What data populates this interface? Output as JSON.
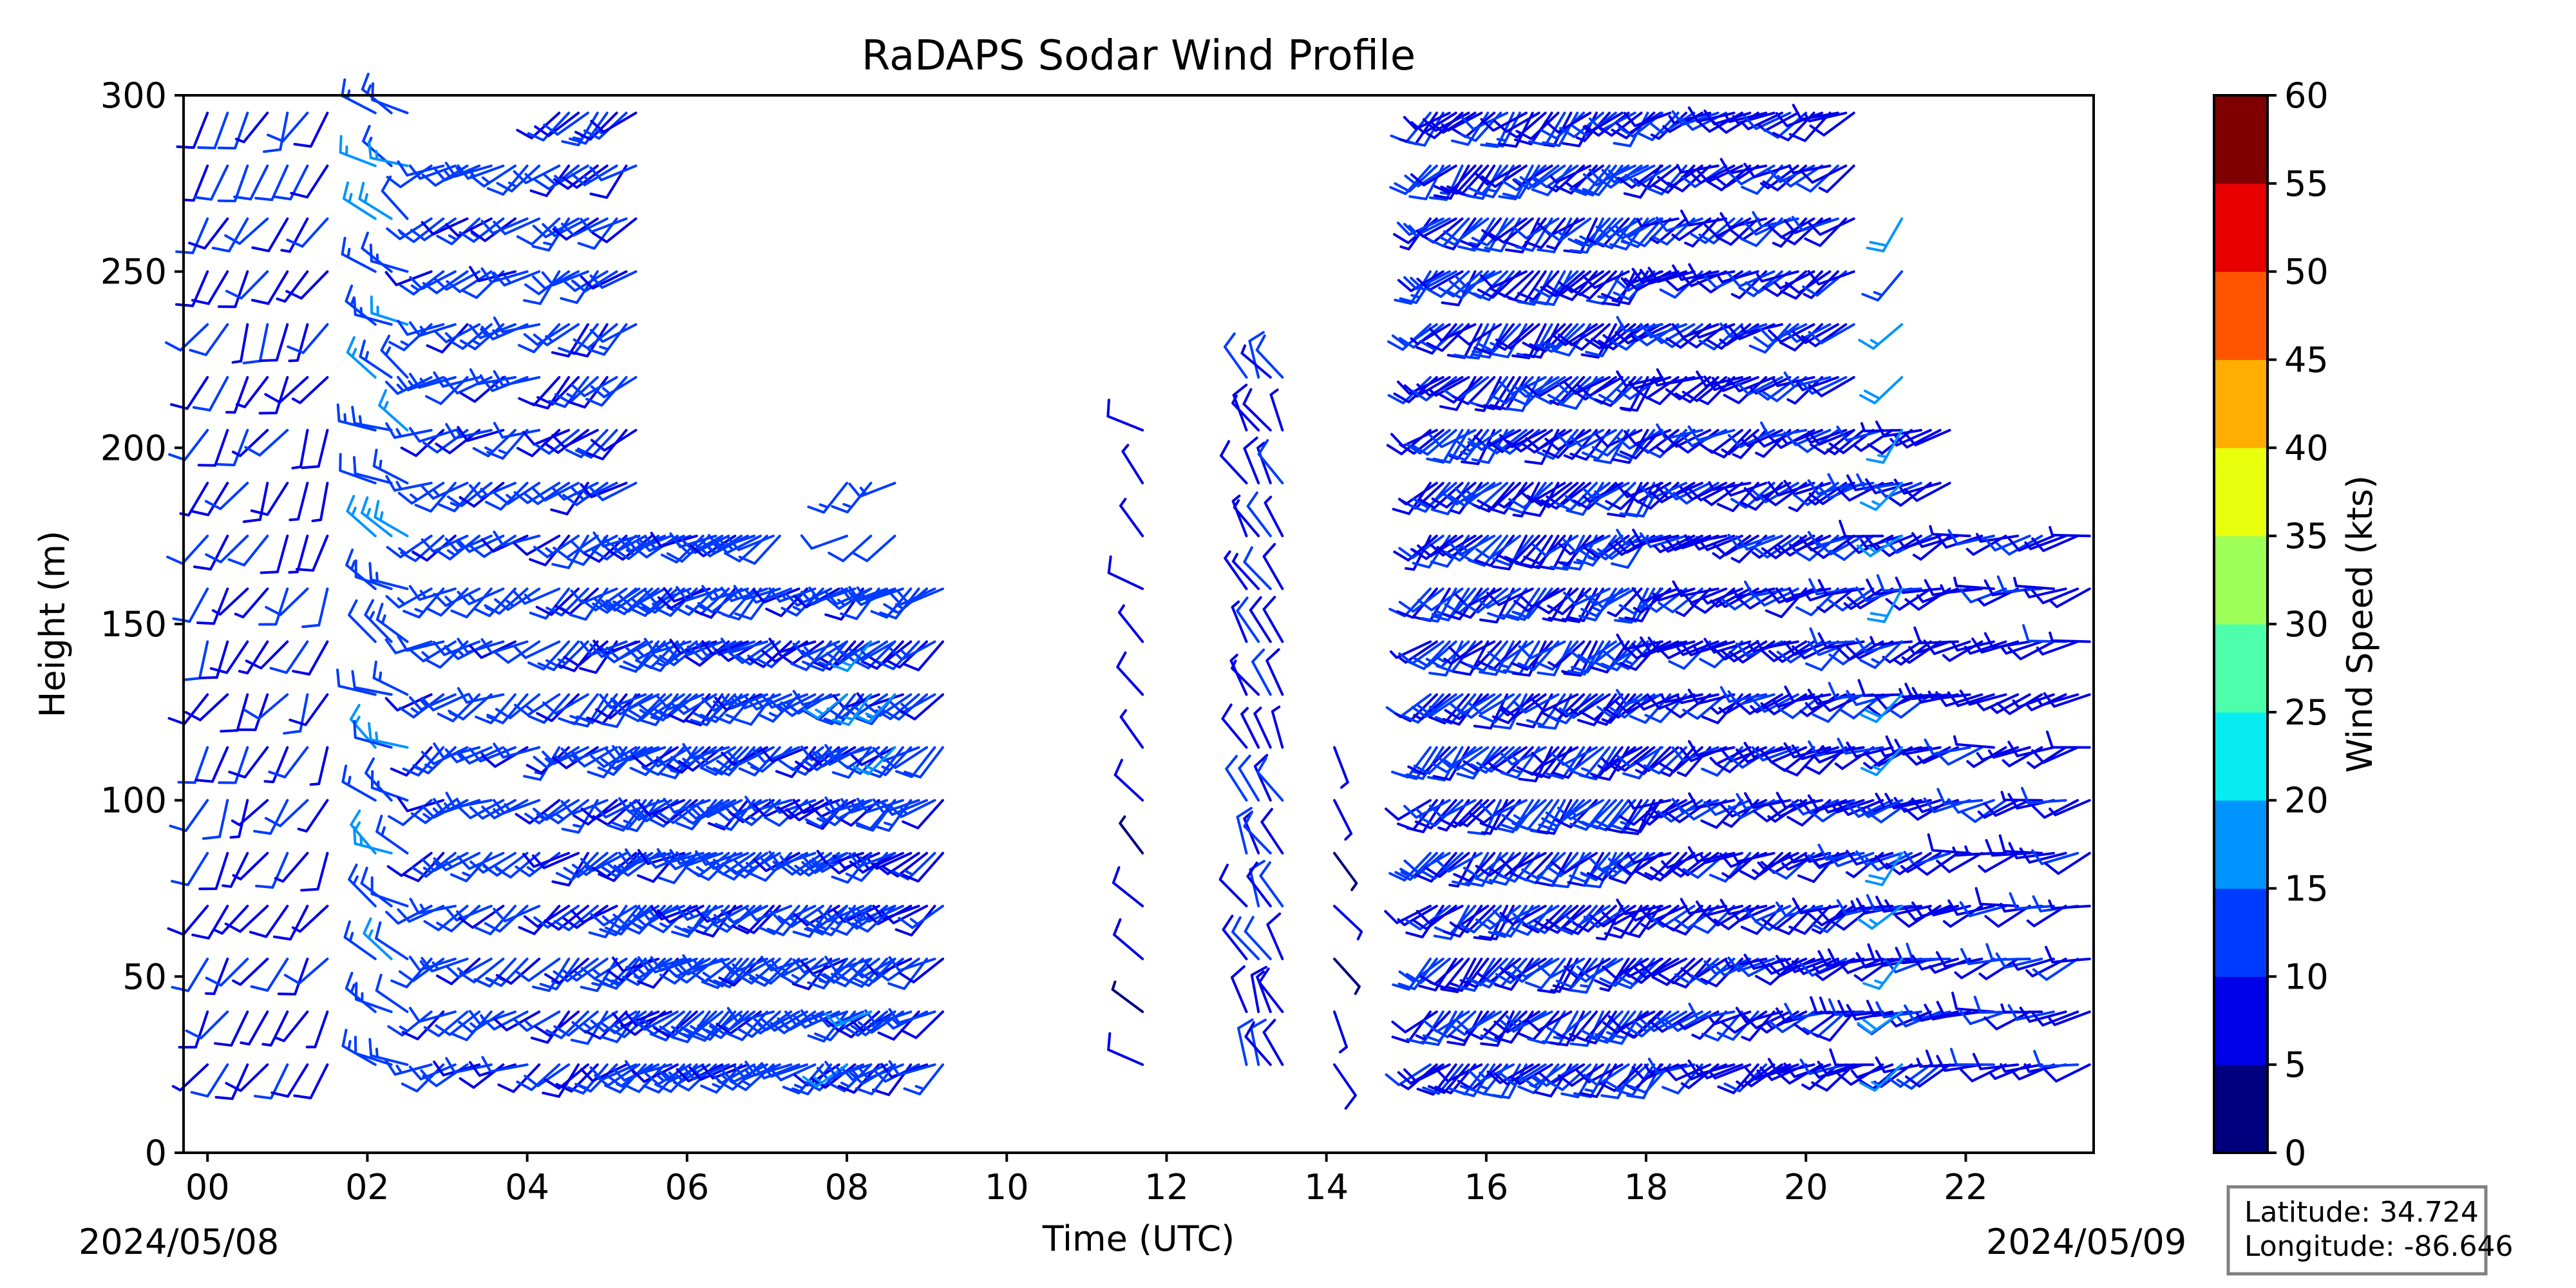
{
  "chart_data": {
    "type": "barbs",
    "title": "RaDAPS Sodar Wind Profile",
    "xlabel": "Time (UTC)",
    "ylabel": "Height (m)",
    "xlim_hours": [
      -0.3,
      23.6
    ],
    "ylim": [
      0,
      300
    ],
    "x_tick_labels": [
      "00",
      "02",
      "04",
      "06",
      "08",
      "10",
      "12",
      "14",
      "16",
      "18",
      "20",
      "22"
    ],
    "x_tick_hours": [
      0,
      2,
      4,
      6,
      8,
      10,
      12,
      14,
      16,
      18,
      20,
      22
    ],
    "y_ticks": [
      0,
      50,
      100,
      150,
      200,
      250,
      300
    ],
    "start_date_label": "2024/05/08",
    "end_date_label": "2024/05/09",
    "heights_m": [
      25,
      40,
      55,
      70,
      85,
      100,
      115,
      130,
      145,
      160,
      175,
      190,
      205,
      220,
      235,
      250,
      265,
      280,
      295
    ],
    "time_segments": [
      {
        "start": 0.0,
        "end": 1.6,
        "step": 0.25,
        "max_height": 295,
        "speed_base": 9,
        "dir": 210
      },
      {
        "start": 2.1,
        "end": 2.5,
        "step": 0.2,
        "max_height": 295,
        "speed_base": 13,
        "dir": 300
      },
      {
        "start": 2.8,
        "end": 4.2,
        "step": 0.15,
        "max_height": 280,
        "speed_base": 12,
        "dir": 240
      },
      {
        "start": 4.4,
        "end": 5.4,
        "step": 0.12,
        "max_height": 295,
        "speed_base": 11,
        "dir": 230
      },
      {
        "start": 5.4,
        "end": 7.2,
        "step": 0.08,
        "max_height": 175,
        "speed_base": 12,
        "dir": 235
      },
      {
        "start": 7.3,
        "end": 9.2,
        "step": 0.1,
        "max_height": 160,
        "speed_base": 11,
        "dir": 235
      },
      {
        "start": 8.0,
        "end": 8.6,
        "step": 0.3,
        "max_height": 190,
        "speed_base": 13,
        "dir": 235
      },
      {
        "start": 11.7,
        "end": 11.7,
        "step": 1,
        "max_height": 205,
        "speed_base": 7,
        "dir": 310
      },
      {
        "start": 13.0,
        "end": 13.5,
        "step": 0.15,
        "max_height": 220,
        "speed_base": 9,
        "dir": 330
      },
      {
        "start": 14.1,
        "end": 14.1,
        "step": 1,
        "max_height": 115,
        "speed_base": 7,
        "dir": 150
      },
      {
        "start": 15.3,
        "end": 18.2,
        "step": 0.08,
        "max_height": 295,
        "speed_base": 10,
        "dir": 225
      },
      {
        "start": 18.2,
        "end": 20.6,
        "step": 0.1,
        "max_height": 295,
        "speed_base": 9,
        "dir": 240
      },
      {
        "start": 20.6,
        "end": 21.8,
        "step": 0.12,
        "max_height": 205,
        "speed_base": 9,
        "dir": 250
      },
      {
        "start": 21.9,
        "end": 23.6,
        "step": 0.15,
        "max_height": 175,
        "speed_base": 8,
        "dir": 255
      },
      {
        "start": 21.2,
        "end": 21.2,
        "step": 1,
        "max_height": 265,
        "speed_base": 17,
        "dir": 225
      }
    ],
    "colorbar": {
      "label": "Wind Speed (kts)",
      "ticks": [
        0,
        5,
        10,
        15,
        20,
        25,
        30,
        35,
        40,
        45,
        50,
        55,
        60
      ],
      "colors": [
        "#00007f",
        "#0000e8",
        "#003cff",
        "#0094ff",
        "#06ecf1",
        "#4dffaa",
        "#9eff59",
        "#e8ff0e",
        "#ffae00",
        "#ff5500",
        "#e80000",
        "#7f0000"
      ]
    }
  },
  "info_box": {
    "latitude": "Latitude: 34.724",
    "longitude": "Longitude: -86.646"
  }
}
